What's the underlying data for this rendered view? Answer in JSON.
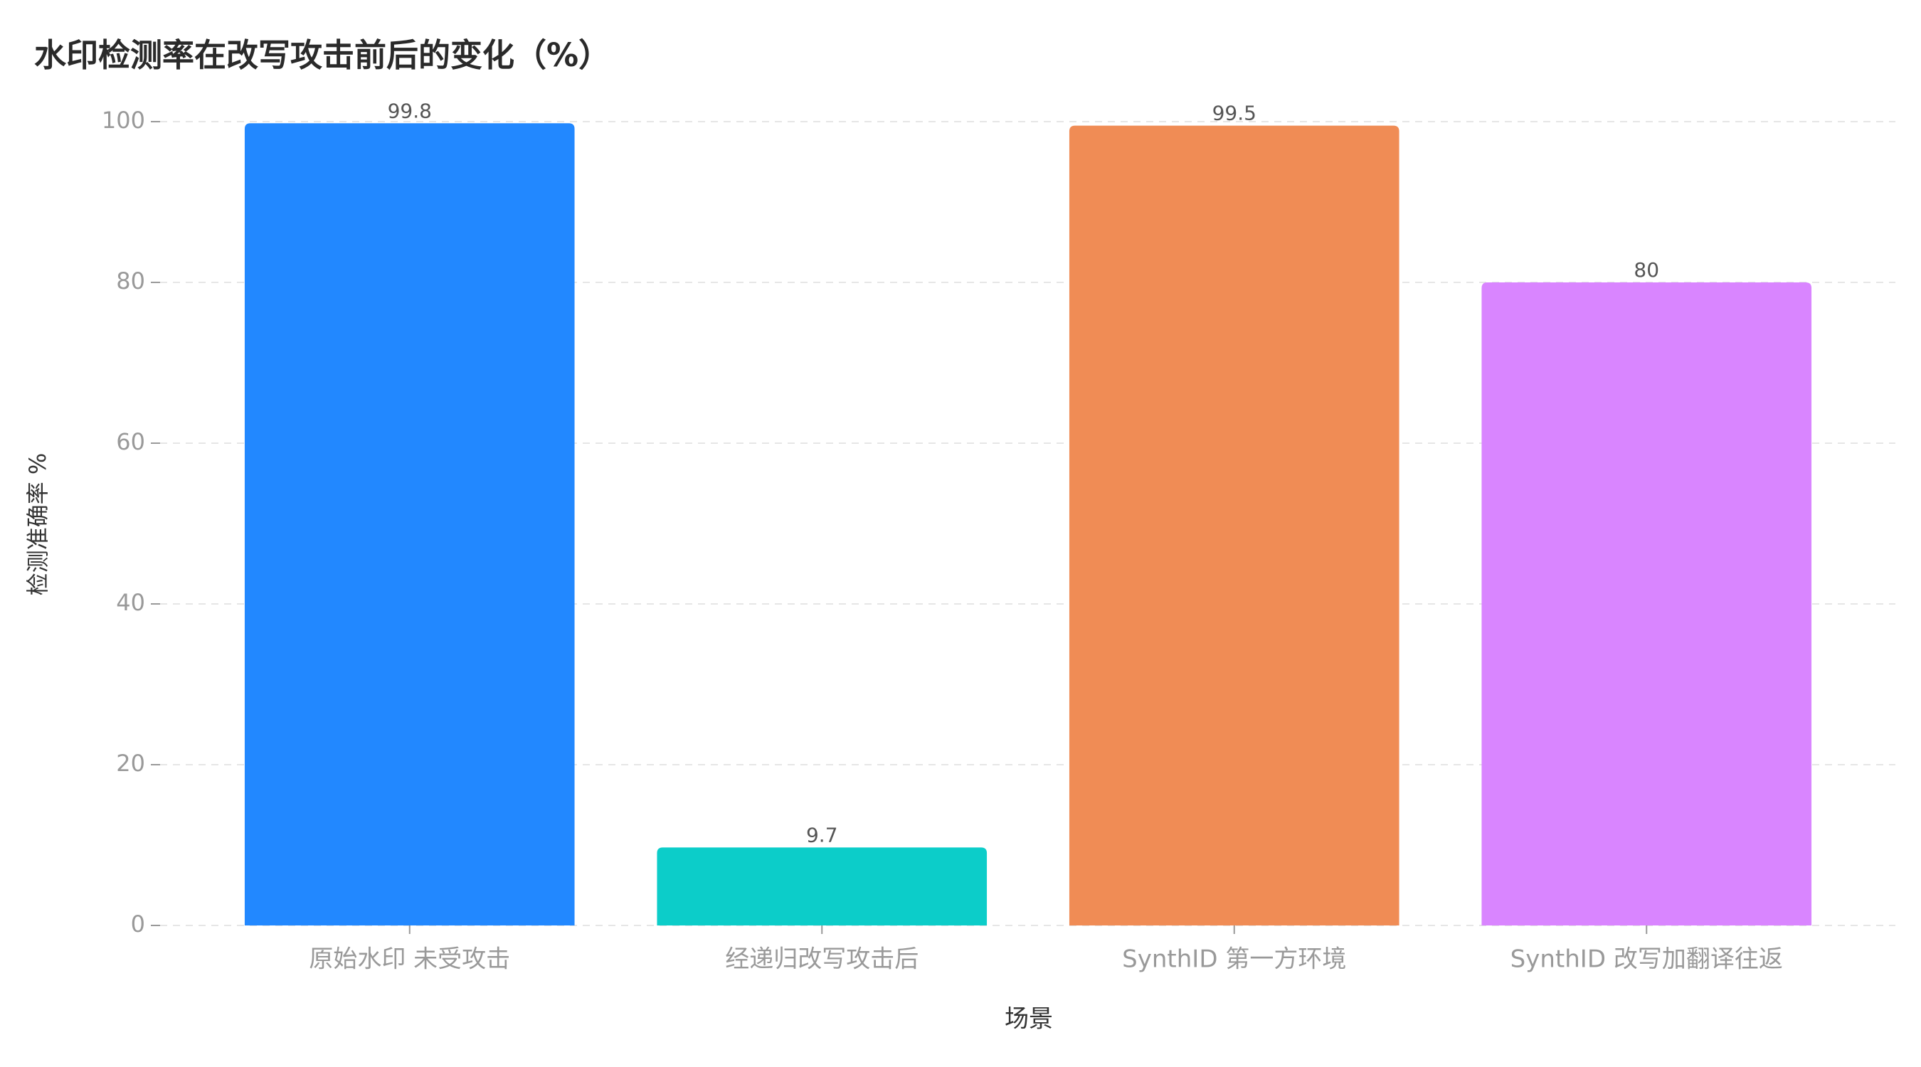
{
  "chart_data": {
    "type": "bar",
    "title": "水印检测率在改写攻击前后的变化（%）",
    "xlabel": "场景",
    "ylabel": "检测准确率 %",
    "categories": [
      "原始水印 未受攻击",
      "经递归改写攻击后",
      "SynthID 第一方环境",
      "SynthID 改写加翻译往返"
    ],
    "values": [
      99.8,
      9.7,
      99.5,
      80
    ],
    "colors": [
      "#2288ff",
      "#0ccdc9",
      "#f08c55",
      "#d985ff"
    ],
    "ylim": [
      0,
      100
    ],
    "yticks": [
      0,
      20,
      40,
      60,
      80,
      100
    ],
    "grid": true
  }
}
